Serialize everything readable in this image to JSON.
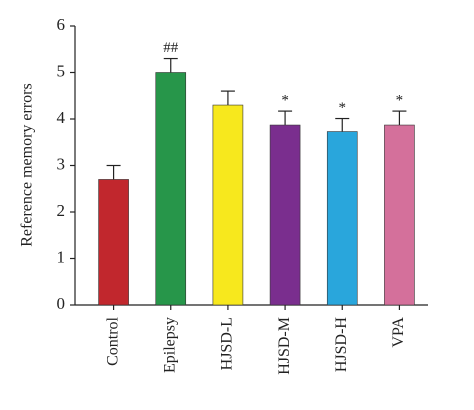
{
  "chart_data": {
    "type": "bar",
    "y_label": "Reference memory errors",
    "categories": [
      "Control",
      "Epilepsy",
      "HJSD-L",
      "HJSD-M",
      "HJSD-H",
      "VPA"
    ],
    "values": [
      2.7,
      5.0,
      4.3,
      3.87,
      3.73,
      3.87
    ],
    "errors": [
      0.3,
      0.3,
      0.3,
      0.3,
      0.28,
      0.3
    ],
    "colors": [
      "#c1272d",
      "#27964a",
      "#f7e81d",
      "#7a2e8e",
      "#29a6dc",
      "#d4709b"
    ],
    "annotations": [
      null,
      "##",
      null,
      "*",
      "*",
      "*"
    ],
    "ylim": [
      0,
      6
    ],
    "yticks": [
      0,
      1,
      2,
      3,
      4,
      5,
      6
    ]
  }
}
